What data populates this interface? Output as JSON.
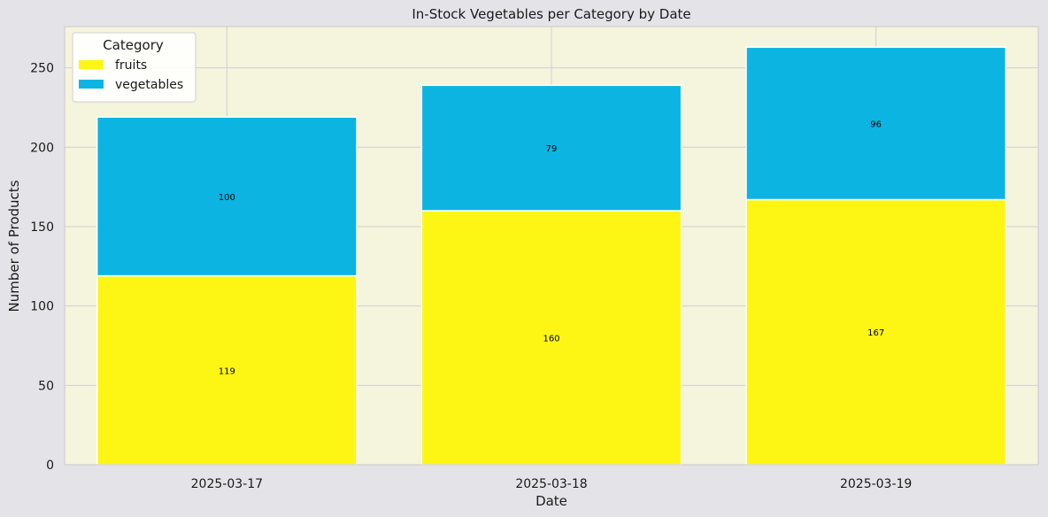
{
  "chart_data": {
    "type": "bar",
    "stacked": true,
    "title": "In-Stock Vegetables per Category by Date",
    "xlabel": "Date",
    "ylabel": "Number of Products",
    "categories": [
      "2025-03-17",
      "2025-03-18",
      "2025-03-19"
    ],
    "series": [
      {
        "name": "fruits",
        "values": [
          119,
          160,
          167
        ],
        "color": "#fdf614"
      },
      {
        "name": "vegetables",
        "values": [
          100,
          79,
          96
        ],
        "color": "#0cb4e2"
      }
    ],
    "ylim": [
      0,
      276
    ],
    "yticks": [
      0,
      50,
      100,
      150,
      200,
      250
    ],
    "grid": true,
    "legend": {
      "title": "Category",
      "placement": "top-left"
    },
    "colors": {
      "plot_background": "#f5f4dc",
      "figure_background": "#e4e3e8",
      "grid": "#cfcfd4",
      "label_text": "#000000"
    }
  }
}
